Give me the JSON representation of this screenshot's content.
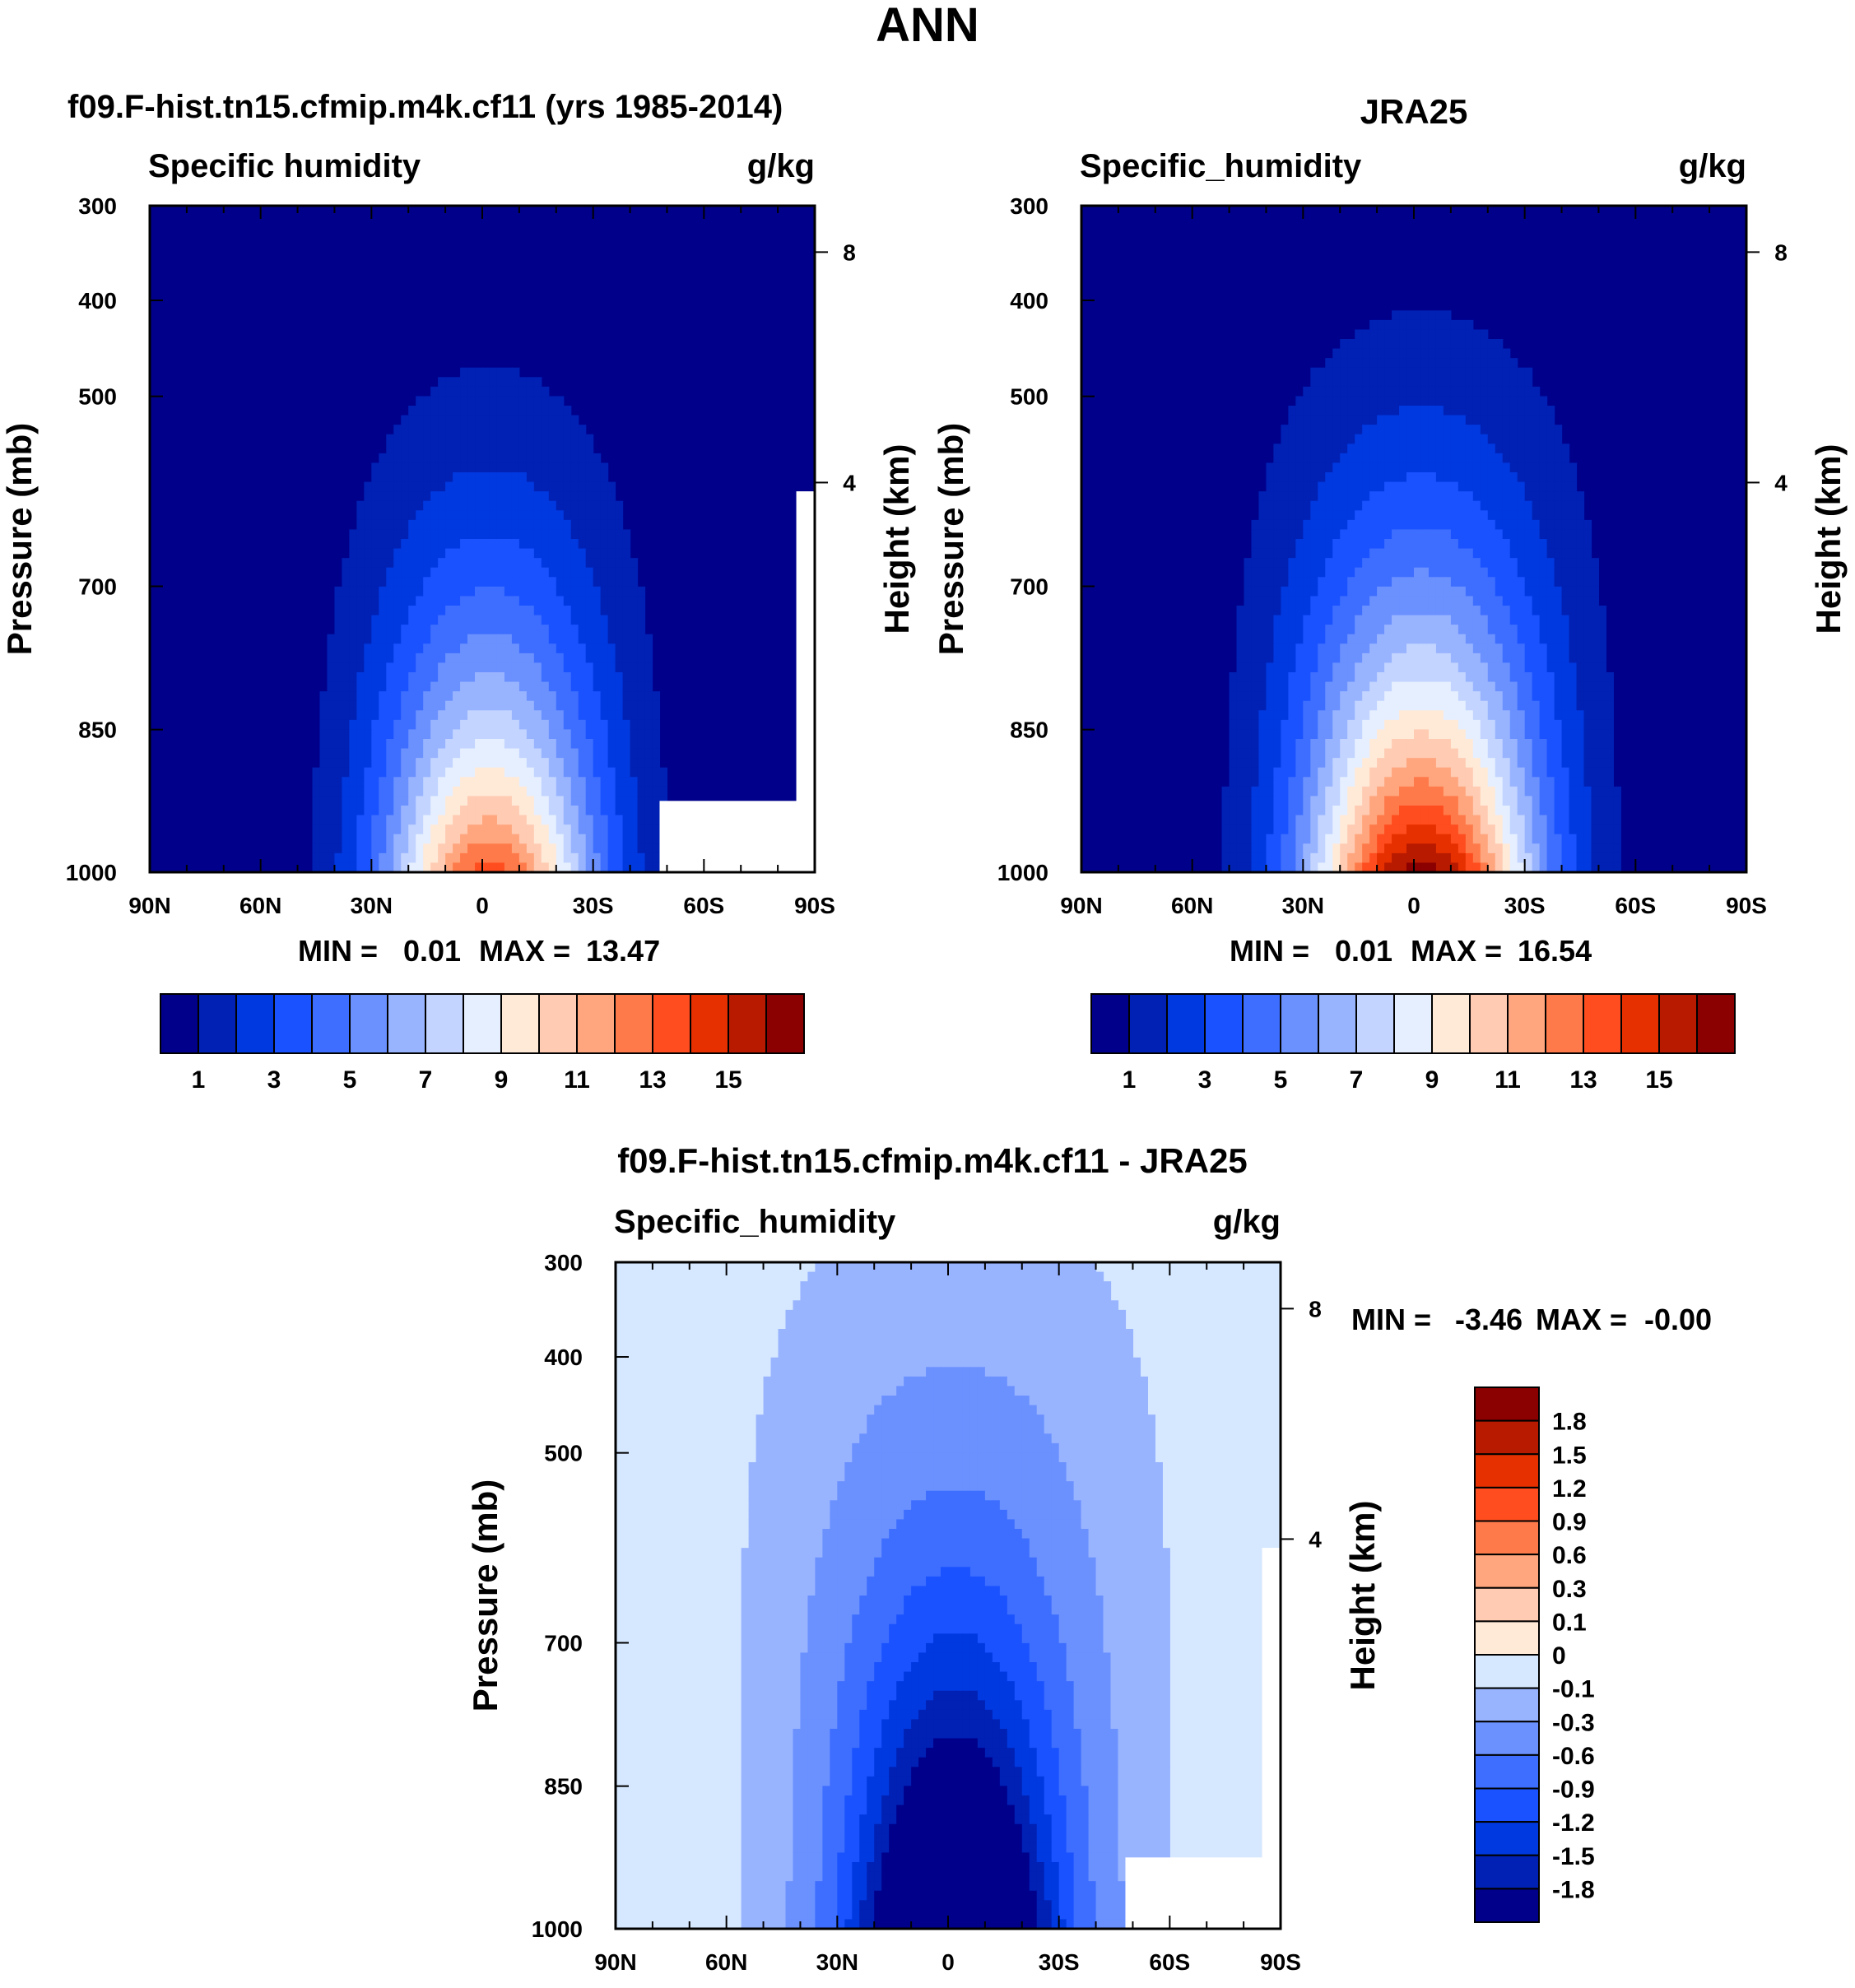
{
  "page_title": "ANN",
  "palettes": {
    "main": [
      "#00008B",
      "#0021B4",
      "#0039E0",
      "#1A52FF",
      "#3E6EFF",
      "#6B91FF",
      "#99B4FF",
      "#C2D4FF",
      "#E6EFFF",
      "#FFEAD8",
      "#FFCBB3",
      "#FFA67E",
      "#FF7A4A",
      "#FF4D1F",
      "#E63000",
      "#B81A00",
      "#8B0000"
    ],
    "diff": [
      "#00008B",
      "#0021B4",
      "#0039E0",
      "#1A52FF",
      "#3E6EFF",
      "#6B91FF",
      "#99B4FF",
      "#D6E8FF",
      "#FFEAD8",
      "#FFCBB3",
      "#FFA67E",
      "#FF7A4A",
      "#FF4D1F",
      "#E63000",
      "#B81A00",
      "#8B0000"
    ],
    "missing": "#FFFFFF"
  },
  "chart_data": [
    {
      "id": "model",
      "type": "heatmap",
      "title": "f09.F-hist.tn15.cfmip.m4k.cf11 (yrs 1985-2014)",
      "left_string": "Specific humidity",
      "right_string": "g/kg",
      "ylabel": "Pressure (mb)",
      "y2label": "Height (km)",
      "x_ticks": [
        "90N",
        "60N",
        "30N",
        "0",
        "30S",
        "60S",
        "90S"
      ],
      "y_ticks": [
        "300",
        "400",
        "500",
        "700",
        "850",
        "1000"
      ],
      "y2_ticks": [
        "8",
        "4"
      ],
      "xlim": [
        90,
        -90
      ],
      "ylim": [
        1000,
        300
      ],
      "min_label": "MIN =",
      "min_value": "0.01",
      "max_label": "MAX =",
      "max_value": "13.47",
      "colorbar_labels": [
        "1",
        "3",
        "5",
        "7",
        "9",
        "11",
        "13",
        "15"
      ],
      "field": {
        "peak": 13.47,
        "peak_lat": -2,
        "sigma_lat": 30,
        "scale_height": 2.2,
        "floor": 0.01
      },
      "missing_rects": [
        {
          "lat": [
            -48,
            -90
          ],
          "p": [
            1000,
            925
          ]
        },
        {
          "lat": [
            -85,
            -90
          ],
          "p": [
            1000,
            600
          ]
        }
      ]
    },
    {
      "id": "obs",
      "type": "heatmap",
      "title": "JRA25",
      "left_string": "Specific_humidity",
      "right_string": "g/kg",
      "ylabel": "Pressure (mb)",
      "y2label": "Height (km)",
      "x_ticks": [
        "90N",
        "60N",
        "30N",
        "0",
        "30S",
        "60S",
        "90S"
      ],
      "y_ticks": [
        "300",
        "400",
        "500",
        "700",
        "850",
        "1000"
      ],
      "y2_ticks": [
        "8",
        "4"
      ],
      "xlim": [
        90,
        -90
      ],
      "ylim": [
        1000,
        300
      ],
      "min_label": "MIN =",
      "min_value": "0.01",
      "max_label": "MAX =",
      "max_value": "16.54",
      "colorbar_labels": [
        "1",
        "3",
        "5",
        "7",
        "9",
        "11",
        "13",
        "15"
      ],
      "field": {
        "peak": 16.54,
        "peak_lat": -2,
        "sigma_lat": 32,
        "scale_height": 2.4,
        "floor": 0.01
      },
      "missing_rects": []
    },
    {
      "id": "diff",
      "type": "heatmap",
      "title": "f09.F-hist.tn15.cfmip.m4k.cf11 - JRA25",
      "left_string": "Specific_humidity",
      "right_string": "g/kg",
      "ylabel": "Pressure (mb)",
      "y2label": "Height (km)",
      "x_ticks": [
        "90N",
        "60N",
        "30N",
        "0",
        "30S",
        "60S",
        "90S"
      ],
      "y_ticks": [
        "300",
        "400",
        "500",
        "700",
        "850",
        "1000"
      ],
      "y2_ticks": [
        "8",
        "4"
      ],
      "xlim": [
        90,
        -90
      ],
      "ylim": [
        1000,
        300
      ],
      "min_label": "MIN =",
      "min_value": "-3.46",
      "max_label": "MAX =",
      "max_value": "-0.00",
      "colorbar_labels": [
        "1.8",
        "1.5",
        "1.2",
        "0.9",
        "0.6",
        "0.3",
        "0.1",
        "0",
        "-0.1",
        "-0.3",
        "-0.6",
        "-0.9",
        "-1.2",
        "-1.5",
        "-1.8"
      ],
      "field": {
        "peak": -3.46,
        "peak_lat": -2,
        "sigma_lat": 28,
        "scale_height": 2.6,
        "floor": -0.05
      },
      "missing_rects": [
        {
          "lat": [
            -48,
            -90
          ],
          "p": [
            1000,
            925
          ]
        },
        {
          "lat": [
            -85,
            -90
          ],
          "p": [
            1000,
            600
          ]
        }
      ]
    }
  ]
}
